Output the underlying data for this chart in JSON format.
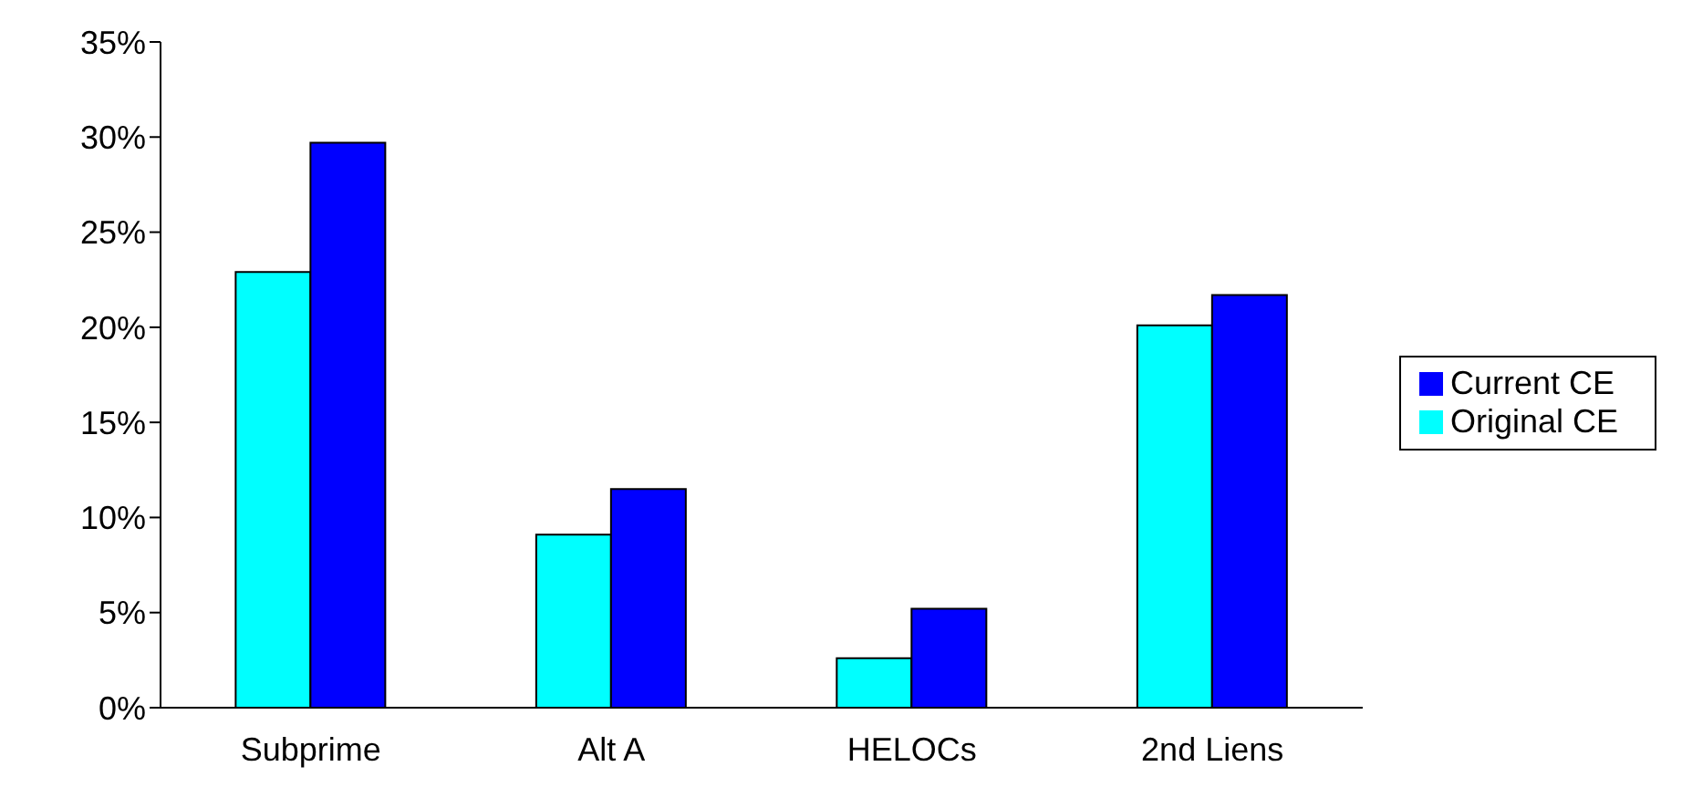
{
  "chart_data": {
    "type": "bar",
    "categories": [
      "Subprime",
      "Alt A",
      "HELOCs",
      "2nd Liens"
    ],
    "series": [
      {
        "name": "Original CE",
        "color": "#00ffff",
        "values": [
          22.9,
          9.1,
          2.6,
          20.1
        ]
      },
      {
        "name": "Current CE",
        "color": "#0000ff",
        "values": [
          29.7,
          11.5,
          5.2,
          21.7
        ]
      }
    ],
    "ylim": [
      0,
      35
    ],
    "yticks": [
      {
        "value": 0,
        "label": "0%"
      },
      {
        "value": 5,
        "label": "5%"
      },
      {
        "value": 10,
        "label": "10%"
      },
      {
        "value": 15,
        "label": "15%"
      },
      {
        "value": 20,
        "label": "20%"
      },
      {
        "value": 25,
        "label": "25%"
      },
      {
        "value": 30,
        "label": "30%"
      },
      {
        "value": 35,
        "label": "35%"
      }
    ],
    "grid": false,
    "legend": "right"
  }
}
